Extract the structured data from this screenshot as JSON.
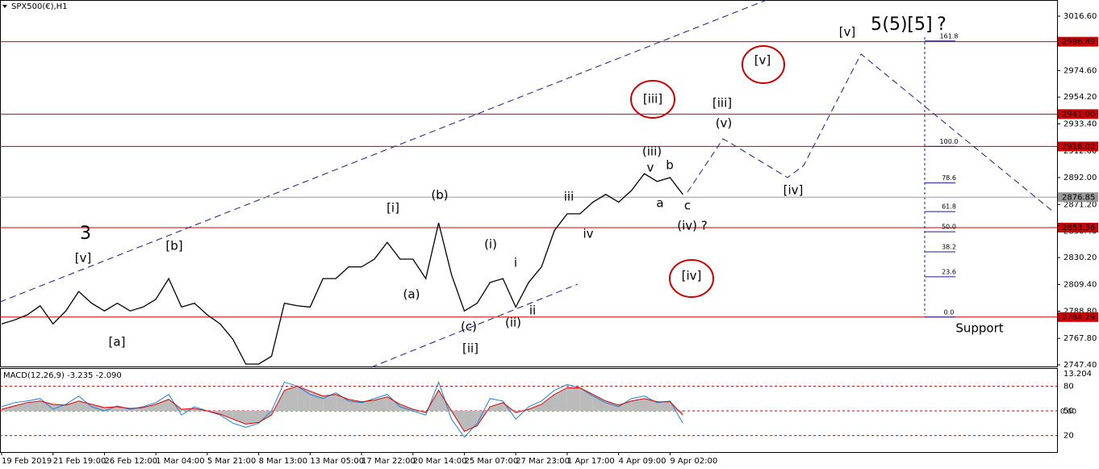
{
  "chart_data": {
    "type": "line",
    "title": "SPX500(€),H1",
    "categories": [
      "19 Feb 2019",
      null,
      null,
      null,
      "21 Feb 19:00",
      null,
      null,
      null,
      "26 Feb 12:00",
      null,
      null,
      null,
      "1 Mar 04:00",
      null,
      null,
      null,
      "5 Mar 21:00",
      null,
      null,
      null,
      "8 Mar 13:00",
      null,
      null,
      null,
      "13 Mar 05:00",
      null,
      null,
      null,
      "17 Mar 22:00",
      null,
      null,
      null,
      "20 Mar 14:00",
      null,
      null,
      null,
      "25 Mar 07:00",
      null,
      null,
      null,
      "27 Mar 23:00",
      null,
      null,
      null,
      "1 Apr 17:00",
      null,
      null,
      null,
      "4 Apr 09:00",
      null,
      null,
      null,
      "9 Apr 02:00",
      null
    ],
    "series": [
      {
        "color": "#000000",
        "values": [
          2779,
          2782,
          2786,
          2793,
          2779,
          2789,
          2804,
          2795,
          2789,
          2795,
          2789,
          2792,
          2798,
          2814,
          2792,
          2795,
          2786,
          2779,
          2767,
          2748,
          2748,
          2754,
          2795,
          2793,
          2792,
          2814,
          2814,
          2823,
          2823,
          2829,
          2842,
          2829,
          2829,
          2814,
          2857,
          2817,
          2789,
          2795,
          2811,
          2814,
          2792,
          2811,
          2823,
          2851,
          2864,
          2864,
          2873,
          2879,
          2873,
          2882,
          2895,
          2889,
          2892,
          2879
        ]
      }
    ],
    "ylim": [
      2745.5,
      3029.1
    ],
    "yticks": [
      {
        "value": 3016.6,
        "label": "3016.60"
      },
      {
        "value": 2974.6,
        "label": "2974.60"
      },
      {
        "value": 2954.2,
        "label": "2954.20"
      },
      {
        "value": 2933.4,
        "label": "2933.40"
      },
      {
        "value": 2912.6,
        "label": "2912.60"
      },
      {
        "value": 2892,
        "label": "2892.00"
      },
      {
        "value": 2871.2,
        "label": "2871.20"
      },
      {
        "value": 2850.4,
        "label": "2850.40"
      },
      {
        "value": 2830.2,
        "label": "2830.20"
      },
      {
        "value": 2809.4,
        "label": "2809.40"
      },
      {
        "value": 2788.8,
        "label": "2788.80"
      },
      {
        "value": 2767.8,
        "label": "2767.80"
      },
      {
        "value": 2747.4,
        "label": "2747.40"
      }
    ],
    "levels": [
      {
        "value": 2996.89,
        "label": "2996.89",
        "color": "#cc0000"
      },
      {
        "value": 2941,
        "label": "2941.00",
        "color": "#cc0000"
      },
      {
        "value": 2916.02,
        "label": "2916.02",
        "color": "#cc0000"
      },
      {
        "value": 2876.85,
        "label": "2876.85",
        "color": "#999999"
      },
      {
        "value": 2853.36,
        "label": "2853.36",
        "color": "#cc0000"
      },
      {
        "value": 2784.29,
        "label": "2784.29",
        "color": "#cc0000"
      }
    ],
    "fib_levels": [
      161.8,
      {
        "value": 100,
        "label": "100.0"
      },
      78.6,
      61.8,
      {
        "value": 50,
        "label": "50.0"
      },
      38.2,
      23.6,
      {
        "value": 0,
        "label": "0.0"
      }
    ],
    "annotations": [
      {
        "text": "3",
        "color": "#0000cc"
      },
      {
        "text": "[v]",
        "color": "#228b22"
      },
      {
        "text": "[a]",
        "color": "#228b22"
      },
      {
        "text": "[b]",
        "color": "#228b22"
      },
      {
        "text": "(a)",
        "color": "#555555"
      },
      {
        "text": "(b)",
        "color": "#555555"
      },
      {
        "text": "[i]",
        "color": "#228b22"
      },
      {
        "text": "(c)",
        "color": "#555555"
      },
      {
        "text": "[ii]",
        "color": "#228b22"
      },
      {
        "text": "(i)",
        "color": "#555555"
      },
      {
        "text": "(ii)",
        "color": "#555555"
      },
      {
        "text": "i",
        "color": "#ee00ee"
      },
      {
        "text": "ii",
        "color": "#ee00ee"
      },
      {
        "text": "iii",
        "color": "#ee00ee"
      },
      {
        "text": "iv",
        "color": "#ee00ee"
      },
      {
        "text": "v",
        "color": "#ee00ee"
      },
      {
        "text": "(iii)",
        "color": "#555555"
      },
      {
        "text": "a",
        "color": "#ee00ee"
      },
      {
        "text": "b",
        "color": "#ee00ee"
      },
      {
        "text": "c",
        "color": "#ee00ee"
      },
      {
        "text": "(iv) ?",
        "color": "#555555"
      },
      {
        "text": "[iii]",
        "color": "#228b22"
      },
      {
        "text": "[iii]",
        "color": "#228b22"
      },
      {
        "text": "(v)",
        "color": "#555555"
      },
      {
        "text": "[iv]",
        "color": "#228b22"
      },
      {
        "text": "[iv]",
        "color": "#228b22"
      },
      {
        "text": "[v]",
        "color": "#228b22"
      },
      {
        "text": "[v]",
        "color": "#228b22"
      },
      {
        "text": "5",
        "color": "#0000cc"
      },
      {
        "text": "(5)",
        "color": "#dd0000"
      },
      {
        "text": "[5]",
        "color": "#000000"
      },
      {
        "text": "?",
        "color": "#000000"
      },
      {
        "text": "Support",
        "color": "#dd0000"
      }
    ],
    "indicator": {
      "title": "MACD(12,26,9) -3.235 -2.090",
      "top_label": "13.204",
      "zero_label": "0.00",
      "ylim": [
        0,
        101
      ],
      "yticks": [
        20,
        50,
        80
      ],
      "series": [
        {
          "color": "#1e7fd8",
          "values": [
            55,
            60,
            62,
            65,
            52,
            58,
            68,
            55,
            50,
            56,
            52,
            55,
            60,
            70,
            45,
            55,
            50,
            45,
            35,
            30,
            35,
            50,
            85,
            80,
            70,
            65,
            72,
            62,
            60,
            65,
            70,
            55,
            50,
            45,
            85,
            40,
            18,
            35,
            65,
            62,
            40,
            55,
            62,
            75,
            82,
            78,
            68,
            60,
            55,
            65,
            68,
            60,
            62,
            35
          ]
        },
        {
          "color": "#dd0000",
          "values": [
            52,
            56,
            60,
            62,
            58,
            57,
            62,
            58,
            54,
            55,
            53,
            54,
            58,
            64,
            52,
            53,
            50,
            46,
            40,
            34,
            36,
            45,
            75,
            80,
            74,
            68,
            70,
            64,
            61,
            63,
            67,
            58,
            52,
            48,
            75,
            50,
            25,
            32,
            55,
            60,
            48,
            52,
            58,
            70,
            78,
            78,
            70,
            62,
            57,
            62,
            65,
            61,
            61,
            45
          ]
        }
      ]
    }
  }
}
